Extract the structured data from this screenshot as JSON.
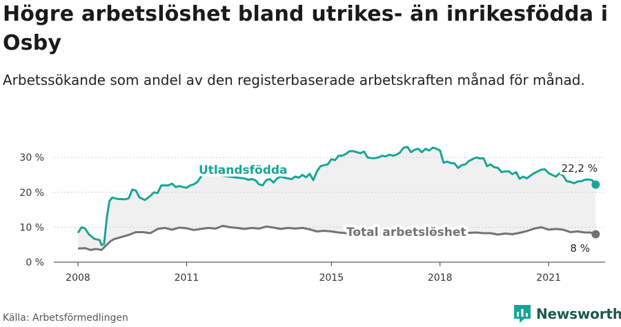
{
  "title": "Högre arbetslöshet bland utrikes- än inrikesfödda i Osby",
  "subtitle": "Arbetssökande som andel av den registerbaserade arbetskraften månad för månad.",
  "source": "Källa: Arbetsförmedlingen",
  "brand": {
    "name": "Newsworthy",
    "icon": "newsworthy-logo-icon"
  },
  "colors": {
    "foreign": "#17a598",
    "total": "#737373",
    "band": "#f0f0f0",
    "axis": "#333333"
  },
  "chart_data": {
    "type": "line",
    "xlim": [
      2007.6,
      2022.8
    ],
    "ylim": [
      0,
      35
    ],
    "y_ticks": [
      {
        "value": 0,
        "label": "0 %"
      },
      {
        "value": 10,
        "label": "10 %"
      },
      {
        "value": 20,
        "label": "20 %"
      },
      {
        "value": 30,
        "label": "30 %"
      }
    ],
    "x_ticks": [
      {
        "value": 2008,
        "label": "2008"
      },
      {
        "value": 2011,
        "label": "2011"
      },
      {
        "value": 2015,
        "label": "2015"
      },
      {
        "value": 2018,
        "label": "2018"
      },
      {
        "value": 2021,
        "label": "2021"
      }
    ],
    "series": [
      {
        "name": "Utlandsfödda",
        "end_label": "22,2 %",
        "points": [
          [
            2008.0,
            8.4
          ],
          [
            2008.1,
            10.0
          ],
          [
            2008.2,
            9.6
          ],
          [
            2008.3,
            8.0
          ],
          [
            2008.45,
            6.7
          ],
          [
            2008.6,
            6.3
          ],
          [
            2008.65,
            4.9
          ],
          [
            2008.72,
            5.2
          ],
          [
            2008.8,
            13.0
          ],
          [
            2008.87,
            17.5
          ],
          [
            2008.95,
            18.5
          ],
          [
            2009.1,
            18.1
          ],
          [
            2009.3,
            18.0
          ],
          [
            2009.4,
            18.3
          ],
          [
            2009.5,
            20.8
          ],
          [
            2009.6,
            20.5
          ],
          [
            2009.7,
            18.5
          ],
          [
            2009.85,
            17.8
          ],
          [
            2010.0,
            19.0
          ],
          [
            2010.1,
            20.0
          ],
          [
            2010.2,
            19.8
          ],
          [
            2010.3,
            22.0
          ],
          [
            2010.4,
            22.0
          ],
          [
            2010.5,
            22.0
          ],
          [
            2010.6,
            22.5
          ],
          [
            2010.7,
            21.5
          ],
          [
            2010.8,
            21.8
          ],
          [
            2010.9,
            21.5
          ],
          [
            2011.0,
            21.3
          ],
          [
            2011.1,
            22.0
          ],
          [
            2011.2,
            22.3
          ],
          [
            2011.3,
            23.0
          ],
          [
            2011.4,
            24.5
          ],
          [
            2011.5,
            25.3
          ],
          [
            2011.8,
            25.0
          ],
          [
            2012.1,
            24.6
          ],
          [
            2012.4,
            24.2
          ],
          [
            2012.6,
            24.0
          ],
          [
            2012.7,
            23.6
          ],
          [
            2012.8,
            23.8
          ],
          [
            2012.9,
            23.5
          ],
          [
            2013.0,
            22.3
          ],
          [
            2013.1,
            22.0
          ],
          [
            2013.2,
            23.5
          ],
          [
            2013.3,
            23.8
          ],
          [
            2013.4,
            22.8
          ],
          [
            2013.5,
            24.0
          ],
          [
            2013.6,
            24.5
          ],
          [
            2013.7,
            24.2
          ],
          [
            2013.8,
            24.0
          ],
          [
            2013.9,
            23.8
          ],
          [
            2014.0,
            24.5
          ],
          [
            2014.1,
            24.2
          ],
          [
            2014.2,
            25.0
          ],
          [
            2014.3,
            24.3
          ],
          [
            2014.4,
            25.3
          ],
          [
            2014.5,
            23.5
          ],
          [
            2014.6,
            26.0
          ],
          [
            2014.7,
            27.5
          ],
          [
            2014.8,
            27.8
          ],
          [
            2014.9,
            28.0
          ],
          [
            2015.0,
            29.5
          ],
          [
            2015.1,
            29.2
          ],
          [
            2015.2,
            30.5
          ],
          [
            2015.3,
            30.5
          ],
          [
            2015.4,
            31.0
          ],
          [
            2015.5,
            31.8
          ],
          [
            2015.6,
            31.8
          ],
          [
            2015.7,
            31.5
          ],
          [
            2015.8,
            31.2
          ],
          [
            2015.9,
            31.7
          ],
          [
            2016.0,
            30.0
          ],
          [
            2016.1,
            29.8
          ],
          [
            2016.2,
            29.8
          ],
          [
            2016.3,
            30.0
          ],
          [
            2016.4,
            30.5
          ],
          [
            2016.5,
            30.3
          ],
          [
            2016.6,
            30.8
          ],
          [
            2016.7,
            30.5
          ],
          [
            2016.8,
            30.8
          ],
          [
            2016.9,
            31.5
          ],
          [
            2017.0,
            32.8
          ],
          [
            2017.1,
            33.0
          ],
          [
            2017.2,
            31.5
          ],
          [
            2017.3,
            32.2
          ],
          [
            2017.4,
            32.5
          ],
          [
            2017.5,
            31.5
          ],
          [
            2017.6,
            32.5
          ],
          [
            2017.7,
            32.0
          ],
          [
            2017.8,
            32.8
          ],
          [
            2017.9,
            32.5
          ],
          [
            2018.0,
            32.0
          ],
          [
            2018.1,
            28.5
          ],
          [
            2018.2,
            28.8
          ],
          [
            2018.3,
            28.4
          ],
          [
            2018.4,
            28.3
          ],
          [
            2018.5,
            27.0
          ],
          [
            2018.6,
            27.8
          ],
          [
            2018.7,
            28.0
          ],
          [
            2018.8,
            29.0
          ],
          [
            2018.9,
            29.5
          ],
          [
            2019.0,
            30.0
          ],
          [
            2019.1,
            29.7
          ],
          [
            2019.2,
            29.8
          ],
          [
            2019.3,
            27.5
          ],
          [
            2019.4,
            28.0
          ],
          [
            2019.5,
            27.2
          ],
          [
            2019.6,
            27.0
          ],
          [
            2019.7,
            25.8
          ],
          [
            2019.8,
            26.0
          ],
          [
            2019.9,
            26.0
          ],
          [
            2020.0,
            25.2
          ],
          [
            2020.1,
            25.8
          ],
          [
            2020.2,
            23.9
          ],
          [
            2020.3,
            24.5
          ],
          [
            2020.4,
            24.0
          ],
          [
            2020.5,
            24.8
          ],
          [
            2020.6,
            25.5
          ],
          [
            2020.7,
            26.0
          ],
          [
            2020.8,
            26.5
          ],
          [
            2020.9,
            26.6
          ],
          [
            2021.0,
            25.5
          ],
          [
            2021.1,
            25.0
          ],
          [
            2021.2,
            24.5
          ],
          [
            2021.3,
            25.5
          ],
          [
            2021.4,
            24.8
          ],
          [
            2021.5,
            23.2
          ],
          [
            2021.6,
            23.0
          ],
          [
            2021.7,
            22.6
          ],
          [
            2021.8,
            23.1
          ],
          [
            2021.9,
            23.2
          ],
          [
            2022.0,
            23.6
          ],
          [
            2022.1,
            23.7
          ],
          [
            2022.2,
            23.5
          ],
          [
            2022.3,
            22.2
          ]
        ]
      },
      {
        "name": "Total arbetslöshet",
        "end_label": "8 %",
        "points": [
          [
            2008.0,
            3.9
          ],
          [
            2008.2,
            4.0
          ],
          [
            2008.35,
            3.5
          ],
          [
            2008.5,
            3.8
          ],
          [
            2008.65,
            3.5
          ],
          [
            2008.75,
            4.5
          ],
          [
            2008.9,
            6.0
          ],
          [
            2009.0,
            6.6
          ],
          [
            2009.2,
            7.2
          ],
          [
            2009.4,
            7.8
          ],
          [
            2009.6,
            8.6
          ],
          [
            2009.8,
            8.6
          ],
          [
            2010.0,
            8.3
          ],
          [
            2010.2,
            9.5
          ],
          [
            2010.4,
            9.8
          ],
          [
            2010.6,
            9.3
          ],
          [
            2010.8,
            9.9
          ],
          [
            2011.0,
            9.7
          ],
          [
            2011.2,
            9.2
          ],
          [
            2011.4,
            9.5
          ],
          [
            2011.6,
            9.8
          ],
          [
            2011.8,
            9.6
          ],
          [
            2012.0,
            10.4
          ],
          [
            2012.2,
            10.0
          ],
          [
            2012.4,
            9.8
          ],
          [
            2012.6,
            9.5
          ],
          [
            2012.8,
            9.8
          ],
          [
            2013.0,
            9.6
          ],
          [
            2013.2,
            10.2
          ],
          [
            2013.4,
            9.9
          ],
          [
            2013.6,
            9.5
          ],
          [
            2013.8,
            9.8
          ],
          [
            2014.0,
            9.6
          ],
          [
            2014.2,
            9.8
          ],
          [
            2014.4,
            9.4
          ],
          [
            2014.6,
            8.8
          ],
          [
            2014.8,
            9.0
          ],
          [
            2015.0,
            8.8
          ],
          [
            2015.2,
            8.5
          ],
          [
            2015.4,
            8.3
          ],
          [
            2015.6,
            8.3
          ],
          [
            2016.0,
            8.1
          ],
          [
            2016.4,
            8.2
          ],
          [
            2016.8,
            8.3
          ],
          [
            2017.2,
            8.5
          ],
          [
            2017.6,
            8.4
          ],
          [
            2018.0,
            8.3
          ],
          [
            2018.4,
            8.2
          ],
          [
            2018.8,
            8.4
          ],
          [
            2019.0,
            8.5
          ],
          [
            2019.2,
            8.3
          ],
          [
            2019.4,
            8.3
          ],
          [
            2019.6,
            7.9
          ],
          [
            2019.8,
            8.2
          ],
          [
            2020.0,
            8.0
          ],
          [
            2020.2,
            8.4
          ],
          [
            2020.4,
            8.9
          ],
          [
            2020.6,
            9.6
          ],
          [
            2020.8,
            10.0
          ],
          [
            2021.0,
            9.3
          ],
          [
            2021.2,
            9.5
          ],
          [
            2021.4,
            9.3
          ],
          [
            2021.6,
            8.6
          ],
          [
            2021.8,
            8.8
          ],
          [
            2022.0,
            8.5
          ],
          [
            2022.15,
            8.5
          ],
          [
            2022.3,
            8.0
          ]
        ]
      }
    ]
  }
}
